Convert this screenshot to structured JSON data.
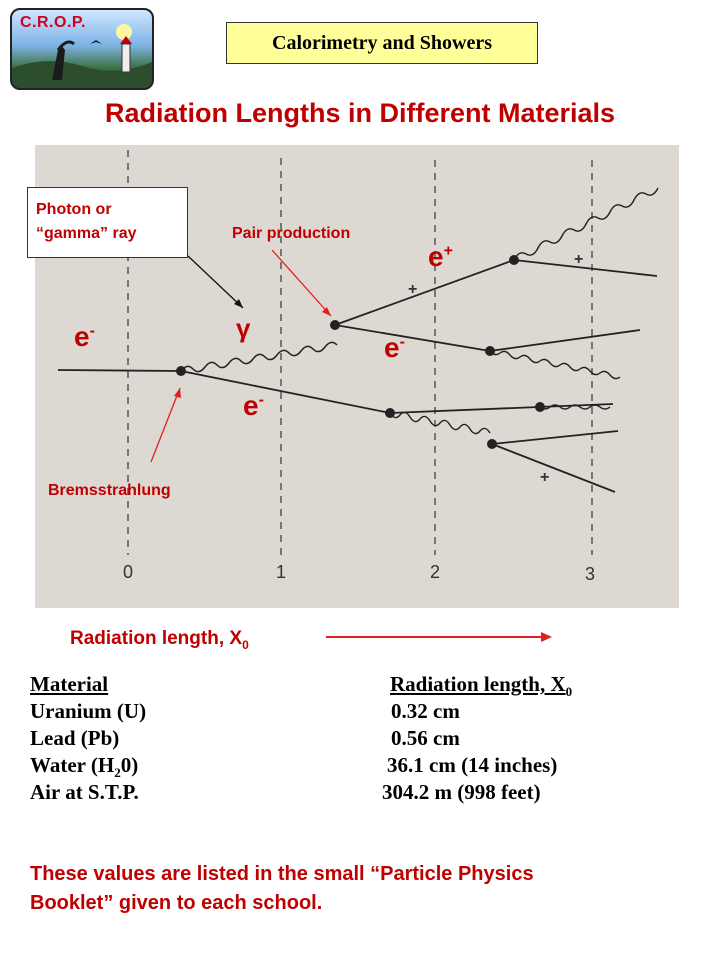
{
  "logo": {
    "text": "C.R.O.P."
  },
  "topic_label": "Calorimetry and Showers",
  "title": "Radiation Lengths in Different Materials",
  "diagram": {
    "axis_ticks": [
      "0",
      "1",
      "2",
      "3"
    ],
    "labels": {
      "photon_line1": "Photon or",
      "photon_line2": "“gamma” ray",
      "pair_production": "Pair  production",
      "bremsstrahlung": "Bremsstrahlung",
      "e_minus_base": "e",
      "minus_sup": "-",
      "e_plus_base": "e",
      "plus_sup": "+",
      "gamma": "γ",
      "plus_mark": "+"
    },
    "xlabel_text": "Radiation length, X",
    "xlabel_sub": "0"
  },
  "materials_table": {
    "header_material": "Material",
    "header_radlen": "Radiation length, X",
    "header_radlen_sub": "0",
    "rows": [
      {
        "material": "Uranium (U)",
        "value": "0.32 cm"
      },
      {
        "material": "Lead (Pb)",
        "value": "0.56 cm"
      },
      {
        "material_pre": "Water (H",
        "material_sub": "2",
        "material_post": "0)",
        "value": "36.1 cm (14 inches)"
      },
      {
        "material": "Air at S.T.P.",
        "value": "304.2 m (998 feet)"
      }
    ]
  },
  "note": {
    "line1": "These values are listed in the small “Particle Physics",
    "line2": "Booklet” given to each school."
  },
  "colors": {
    "accent": "#c00000",
    "topic_bg": "#ffff99",
    "diagram_bg": "#ddd9d2"
  }
}
